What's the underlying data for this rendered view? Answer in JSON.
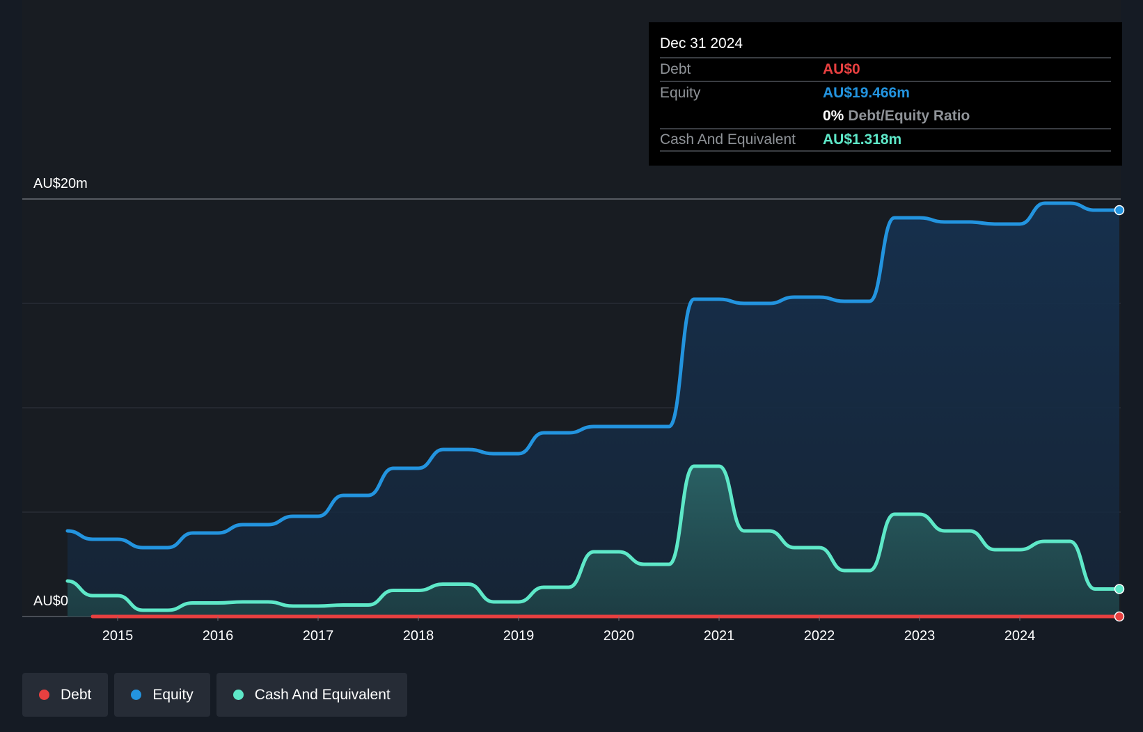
{
  "chart_data": {
    "type": "area",
    "y_axis": {
      "min": 0,
      "max": 20,
      "labels": [
        "AU$20m",
        "AU$0"
      ],
      "gridlines": [
        0,
        5,
        10,
        15,
        20
      ]
    },
    "x_axis": {
      "ticks": [
        "2015",
        "2016",
        "2017",
        "2018",
        "2019",
        "2020",
        "2021",
        "2022",
        "2023",
        "2024"
      ]
    },
    "series": [
      {
        "name": "Equity",
        "color": "#2394df",
        "points": [
          [
            2014.5,
            4.1
          ],
          [
            2014.75,
            3.7
          ],
          [
            2015,
            3.7
          ],
          [
            2015.25,
            3.3
          ],
          [
            2015.5,
            3.3
          ],
          [
            2015.75,
            4.0
          ],
          [
            2016,
            4.0
          ],
          [
            2016.25,
            4.4
          ],
          [
            2016.5,
            4.4
          ],
          [
            2016.75,
            4.8
          ],
          [
            2017,
            4.8
          ],
          [
            2017.25,
            5.8
          ],
          [
            2017.5,
            5.8
          ],
          [
            2017.75,
            7.1
          ],
          [
            2018,
            7.1
          ],
          [
            2018.25,
            8.0
          ],
          [
            2018.5,
            8.0
          ],
          [
            2018.75,
            7.8
          ],
          [
            2019,
            7.8
          ],
          [
            2019.25,
            8.8
          ],
          [
            2019.5,
            8.8
          ],
          [
            2019.75,
            9.1
          ],
          [
            2020,
            9.1
          ],
          [
            2020.25,
            9.1
          ],
          [
            2020.5,
            9.1
          ],
          [
            2020.75,
            15.2
          ],
          [
            2021,
            15.2
          ],
          [
            2021.25,
            15.0
          ],
          [
            2021.5,
            15.0
          ],
          [
            2021.75,
            15.3
          ],
          [
            2022,
            15.3
          ],
          [
            2022.25,
            15.1
          ],
          [
            2022.5,
            15.1
          ],
          [
            2022.75,
            19.1
          ],
          [
            2023,
            19.1
          ],
          [
            2023.25,
            18.9
          ],
          [
            2023.5,
            18.9
          ],
          [
            2023.75,
            18.8
          ],
          [
            2024,
            18.8
          ],
          [
            2024.25,
            19.8
          ],
          [
            2024.5,
            19.8
          ],
          [
            2024.75,
            19.466
          ],
          [
            2025,
            19.466
          ]
        ]
      },
      {
        "name": "Cash And Equivalent",
        "color": "#5ee8c8",
        "points": [
          [
            2014.5,
            1.7
          ],
          [
            2014.75,
            1.0
          ],
          [
            2015,
            1.0
          ],
          [
            2015.25,
            0.3
          ],
          [
            2015.5,
            0.3
          ],
          [
            2015.75,
            0.65
          ],
          [
            2016,
            0.65
          ],
          [
            2016.25,
            0.7
          ],
          [
            2016.5,
            0.7
          ],
          [
            2016.75,
            0.5
          ],
          [
            2017,
            0.5
          ],
          [
            2017.25,
            0.55
          ],
          [
            2017.5,
            0.55
          ],
          [
            2017.75,
            1.25
          ],
          [
            2018,
            1.25
          ],
          [
            2018.25,
            1.55
          ],
          [
            2018.5,
            1.55
          ],
          [
            2018.75,
            0.7
          ],
          [
            2019,
            0.7
          ],
          [
            2019.25,
            1.4
          ],
          [
            2019.5,
            1.4
          ],
          [
            2019.75,
            3.1
          ],
          [
            2020,
            3.1
          ],
          [
            2020.25,
            2.5
          ],
          [
            2020.5,
            2.5
          ],
          [
            2020.75,
            7.2
          ],
          [
            2021,
            7.2
          ],
          [
            2021.25,
            4.1
          ],
          [
            2021.5,
            4.1
          ],
          [
            2021.75,
            3.3
          ],
          [
            2022,
            3.3
          ],
          [
            2022.25,
            2.2
          ],
          [
            2022.5,
            2.2
          ],
          [
            2022.75,
            4.9
          ],
          [
            2023,
            4.9
          ],
          [
            2023.25,
            4.1
          ],
          [
            2023.5,
            4.1
          ],
          [
            2023.75,
            3.2
          ],
          [
            2024,
            3.2
          ],
          [
            2024.25,
            3.6
          ],
          [
            2024.5,
            3.6
          ],
          [
            2024.75,
            1.318
          ],
          [
            2025,
            1.318
          ]
        ]
      },
      {
        "name": "Debt",
        "color": "#e84040",
        "points": [
          [
            2014.75,
            0
          ],
          [
            2025,
            0
          ]
        ]
      }
    ],
    "legend": {
      "placement": "bottom-left",
      "items": [
        {
          "label": "Debt",
          "color": "#e84040"
        },
        {
          "label": "Equity",
          "color": "#2394df"
        },
        {
          "label": "Cash And Equivalent",
          "color": "#5ee8c8"
        }
      ]
    },
    "grid": true
  },
  "tooltip": {
    "date": "Dec 31 2024",
    "debt_label": "Debt",
    "debt_value": "AU$0",
    "equity_label": "Equity",
    "equity_value": "AU$19.466m",
    "ratio_pct": "0%",
    "ratio_label": "Debt/Equity Ratio",
    "cash_label": "Cash And Equivalent",
    "cash_value": "AU$1.318m",
    "colors": {
      "debt": "#e84040",
      "equity": "#2394df",
      "cash": "#5ee8c8"
    }
  }
}
